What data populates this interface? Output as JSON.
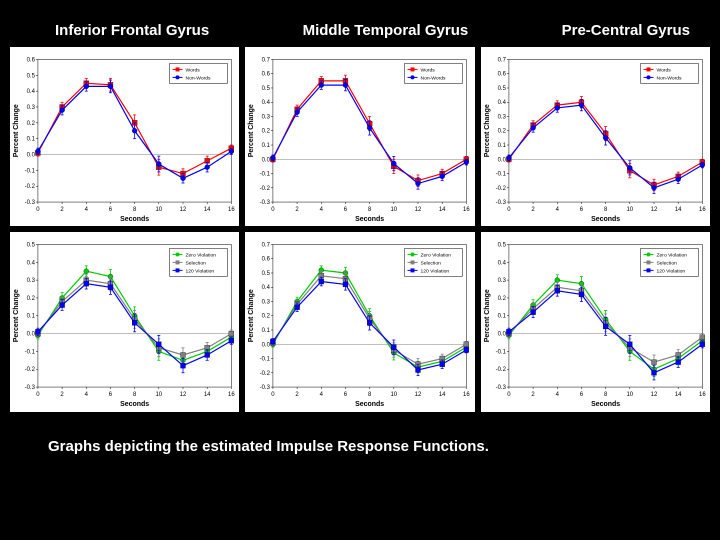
{
  "titles": [
    "Inferior Frontal Gyrus",
    "Middle Temporal Gyrus",
    "Pre-Central Gyrus"
  ],
  "caption": "Graphs depicting the estimated Impulse Response Functions.",
  "xlabel": "Seconds",
  "ylabel": "Percent Change",
  "x_ticks": [
    0,
    2,
    4,
    6,
    8,
    10,
    12,
    14,
    16
  ],
  "row1": {
    "legend": [
      {
        "label": "Words",
        "color": "#ff0000",
        "marker": "square"
      },
      {
        "label": "Non-Words",
        "color": "#0000ff",
        "marker": "circle"
      }
    ],
    "legend_pos": "top-right"
  },
  "row2": {
    "legend": [
      {
        "label": "Zero Violation",
        "color": "#00cc00",
        "marker": "circle"
      },
      {
        "label": "Selection",
        "color": "#808080",
        "marker": "square"
      },
      {
        "label": "120 Violation",
        "color": "#0000ff",
        "marker": "square"
      }
    ],
    "legend_pos": "top-right"
  },
  "panels": [
    {
      "row": 0,
      "col": 0,
      "ylim": [
        -0.3,
        0.6
      ],
      "ytick_step": 0.1,
      "series": [
        {
          "color": "#ff0000",
          "marker": "square",
          "x": [
            0,
            2,
            4,
            6,
            8,
            10,
            12,
            14,
            16
          ],
          "y": [
            0.01,
            0.3,
            0.45,
            0.44,
            0.2,
            -0.08,
            -0.12,
            -0.04,
            0.04
          ],
          "err": [
            0.02,
            0.03,
            0.03,
            0.04,
            0.05,
            0.05,
            0.03,
            0.03,
            0.02
          ]
        },
        {
          "color": "#0000ff",
          "marker": "circle",
          "x": [
            0,
            2,
            4,
            6,
            8,
            10,
            12,
            14,
            16
          ],
          "y": [
            0.02,
            0.28,
            0.43,
            0.43,
            0.15,
            -0.06,
            -0.15,
            -0.08,
            0.02
          ],
          "err": [
            0.02,
            0.03,
            0.03,
            0.04,
            0.05,
            0.05,
            0.03,
            0.03,
            0.02
          ]
        }
      ]
    },
    {
      "row": 0,
      "col": 1,
      "ylim": [
        -0.3,
        0.7
      ],
      "ytick_step": 0.1,
      "series": [
        {
          "color": "#ff0000",
          "marker": "square",
          "x": [
            0,
            2,
            4,
            6,
            8,
            10,
            12,
            14,
            16
          ],
          "y": [
            0.0,
            0.35,
            0.55,
            0.55,
            0.25,
            -0.05,
            -0.15,
            -0.1,
            0.0
          ],
          "err": [
            0.02,
            0.03,
            0.03,
            0.04,
            0.05,
            0.05,
            0.04,
            0.03,
            0.02
          ]
        },
        {
          "color": "#0000ff",
          "marker": "circle",
          "x": [
            0,
            2,
            4,
            6,
            8,
            10,
            12,
            14,
            16
          ],
          "y": [
            0.01,
            0.33,
            0.52,
            0.52,
            0.22,
            -0.03,
            -0.17,
            -0.12,
            -0.02
          ],
          "err": [
            0.02,
            0.03,
            0.03,
            0.04,
            0.05,
            0.05,
            0.04,
            0.03,
            0.02
          ]
        }
      ]
    },
    {
      "row": 0,
      "col": 2,
      "ylim": [
        -0.3,
        0.7
      ],
      "ytick_step": 0.1,
      "series": [
        {
          "color": "#ff0000",
          "marker": "square",
          "x": [
            0,
            2,
            4,
            6,
            8,
            10,
            12,
            14,
            16
          ],
          "y": [
            0.0,
            0.24,
            0.38,
            0.4,
            0.18,
            -0.08,
            -0.18,
            -0.12,
            -0.02
          ],
          "err": [
            0.02,
            0.03,
            0.03,
            0.04,
            0.05,
            0.05,
            0.04,
            0.03,
            0.02
          ]
        },
        {
          "color": "#0000ff",
          "marker": "circle",
          "x": [
            0,
            2,
            4,
            6,
            8,
            10,
            12,
            14,
            16
          ],
          "y": [
            0.01,
            0.22,
            0.36,
            0.38,
            0.15,
            -0.06,
            -0.2,
            -0.14,
            -0.04
          ],
          "err": [
            0.02,
            0.03,
            0.03,
            0.04,
            0.05,
            0.05,
            0.04,
            0.03,
            0.02
          ]
        }
      ]
    },
    {
      "row": 1,
      "col": 0,
      "ylim": [
        -0.3,
        0.5
      ],
      "ytick_step": 0.1,
      "series": [
        {
          "color": "#00cc00",
          "marker": "circle",
          "x": [
            0,
            2,
            4,
            6,
            8,
            10,
            12,
            14,
            16
          ],
          "y": [
            -0.01,
            0.2,
            0.35,
            0.32,
            0.1,
            -0.1,
            -0.15,
            -0.1,
            -0.02
          ],
          "err": [
            0.02,
            0.03,
            0.03,
            0.04,
            0.05,
            0.05,
            0.04,
            0.03,
            0.02
          ]
        },
        {
          "color": "#808080",
          "marker": "square",
          "x": [
            0,
            2,
            4,
            6,
            8,
            10,
            12,
            14,
            16
          ],
          "y": [
            0.0,
            0.18,
            0.3,
            0.28,
            0.08,
            -0.08,
            -0.12,
            -0.08,
            0.0
          ],
          "err": [
            0.02,
            0.03,
            0.03,
            0.04,
            0.05,
            0.05,
            0.04,
            0.03,
            0.02
          ]
        },
        {
          "color": "#0000ff",
          "marker": "square",
          "x": [
            0,
            2,
            4,
            6,
            8,
            10,
            12,
            14,
            16
          ],
          "y": [
            0.01,
            0.16,
            0.28,
            0.26,
            0.06,
            -0.06,
            -0.18,
            -0.12,
            -0.04
          ],
          "err": [
            0.02,
            0.03,
            0.03,
            0.04,
            0.05,
            0.05,
            0.04,
            0.03,
            0.02
          ]
        }
      ]
    },
    {
      "row": 1,
      "col": 1,
      "ylim": [
        -0.3,
        0.7
      ],
      "ytick_step": 0.1,
      "series": [
        {
          "color": "#00cc00",
          "marker": "circle",
          "x": [
            0,
            2,
            4,
            6,
            8,
            10,
            12,
            14,
            16
          ],
          "y": [
            0.0,
            0.3,
            0.52,
            0.5,
            0.2,
            -0.06,
            -0.16,
            -0.12,
            -0.02
          ],
          "err": [
            0.02,
            0.03,
            0.03,
            0.04,
            0.05,
            0.05,
            0.04,
            0.03,
            0.02
          ]
        },
        {
          "color": "#808080",
          "marker": "square",
          "x": [
            0,
            2,
            4,
            6,
            8,
            10,
            12,
            14,
            16
          ],
          "y": [
            0.01,
            0.28,
            0.48,
            0.46,
            0.18,
            -0.04,
            -0.14,
            -0.1,
            0.0
          ],
          "err": [
            0.02,
            0.03,
            0.03,
            0.04,
            0.05,
            0.05,
            0.04,
            0.03,
            0.02
          ]
        },
        {
          "color": "#0000ff",
          "marker": "square",
          "x": [
            0,
            2,
            4,
            6,
            8,
            10,
            12,
            14,
            16
          ],
          "y": [
            0.02,
            0.26,
            0.44,
            0.42,
            0.15,
            -0.02,
            -0.18,
            -0.14,
            -0.04
          ],
          "err": [
            0.02,
            0.03,
            0.03,
            0.04,
            0.05,
            0.05,
            0.04,
            0.03,
            0.02
          ]
        }
      ]
    },
    {
      "row": 1,
      "col": 2,
      "ylim": [
        -0.3,
        0.5
      ],
      "ytick_step": 0.1,
      "series": [
        {
          "color": "#00cc00",
          "marker": "circle",
          "x": [
            0,
            2,
            4,
            6,
            8,
            10,
            12,
            14,
            16
          ],
          "y": [
            -0.01,
            0.16,
            0.3,
            0.28,
            0.08,
            -0.1,
            -0.2,
            -0.14,
            -0.04
          ],
          "err": [
            0.02,
            0.03,
            0.03,
            0.04,
            0.05,
            0.05,
            0.04,
            0.03,
            0.02
          ]
        },
        {
          "color": "#808080",
          "marker": "square",
          "x": [
            0,
            2,
            4,
            6,
            8,
            10,
            12,
            14,
            16
          ],
          "y": [
            0.0,
            0.14,
            0.26,
            0.24,
            0.06,
            -0.08,
            -0.16,
            -0.12,
            -0.02
          ],
          "err": [
            0.02,
            0.03,
            0.03,
            0.04,
            0.05,
            0.05,
            0.04,
            0.03,
            0.02
          ]
        },
        {
          "color": "#0000ff",
          "marker": "square",
          "x": [
            0,
            2,
            4,
            6,
            8,
            10,
            12,
            14,
            16
          ],
          "y": [
            0.01,
            0.12,
            0.24,
            0.22,
            0.04,
            -0.06,
            -0.22,
            -0.16,
            -0.06
          ],
          "err": [
            0.02,
            0.03,
            0.03,
            0.04,
            0.05,
            0.05,
            0.04,
            0.03,
            0.02
          ]
        }
      ]
    }
  ],
  "plot_style": {
    "bg": "#ffffff",
    "axis_color": "#000000",
    "grid_zero_color": "#999999",
    "line_width": 1.2,
    "marker_size": 2.5,
    "err_width": 0.8
  }
}
